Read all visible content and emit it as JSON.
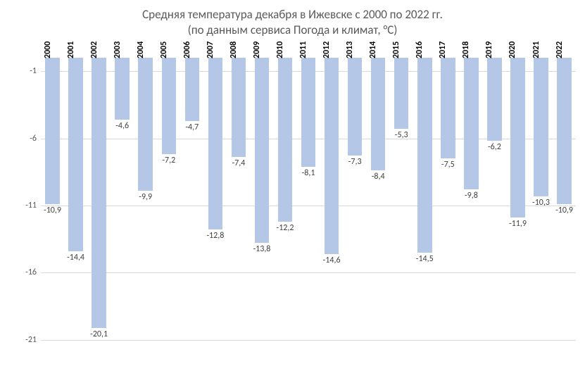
{
  "chart": {
    "type": "bar",
    "title_line1": "Средняя температура декабря в Ижевске с 2000 по 2022 гг.",
    "title_line2": "(по данным сервиса Погода и климат, °C)",
    "title_fontsize": 17,
    "title_color": "#595959",
    "background_color": "#ffffff",
    "bar_color": "#b4c7e7",
    "grid_color": "#d9d9d9",
    "axis_label_color": "#595959",
    "value_label_color": "#404040",
    "category_label_color": "#000000",
    "category_label_fontsize": 12,
    "category_label_bold": true,
    "value_label_fontsize": 12,
    "ytick_fontsize": 12,
    "ymin": -22,
    "ymax": 0,
    "yticks": [
      -1,
      -6,
      -11,
      -16,
      -21
    ],
    "ytick_labels": [
      "-1",
      "-6",
      "-11",
      "-16",
      "-21"
    ],
    "bar_width_ratio": 0.62,
    "categories": [
      "2000",
      "2001",
      "2002",
      "2003",
      "2004",
      "2005",
      "2006",
      "2007",
      "2008",
      "2009",
      "2010",
      "2011",
      "2012",
      "2013",
      "2014",
      "2015",
      "2016",
      "2017",
      "2018",
      "2019",
      "2020",
      "2021",
      "2022"
    ],
    "values": [
      -10.9,
      -14.4,
      -20.1,
      -4.6,
      -9.9,
      -7.2,
      -4.7,
      -12.8,
      -7.4,
      -13.8,
      -12.2,
      -8.1,
      -14.6,
      -7.3,
      -8.4,
      -5.3,
      -14.5,
      -7.5,
      -9.8,
      -6.2,
      -11.9,
      -10.3,
      -10.9
    ],
    "value_labels": [
      "-10,9",
      "-14,4",
      "-20,1",
      "-4,6",
      "-9,9",
      "-7,2",
      "-4,7",
      "-12,8",
      "-7,4",
      "-13,8",
      "-12,2",
      "-8,1",
      "-14,6",
      "-7,3",
      "-8,4",
      "-5,3",
      "-14,5",
      "-7,5",
      "-9,8",
      "-6,2",
      "-11,9",
      "-10,3",
      "-10,9"
    ]
  }
}
